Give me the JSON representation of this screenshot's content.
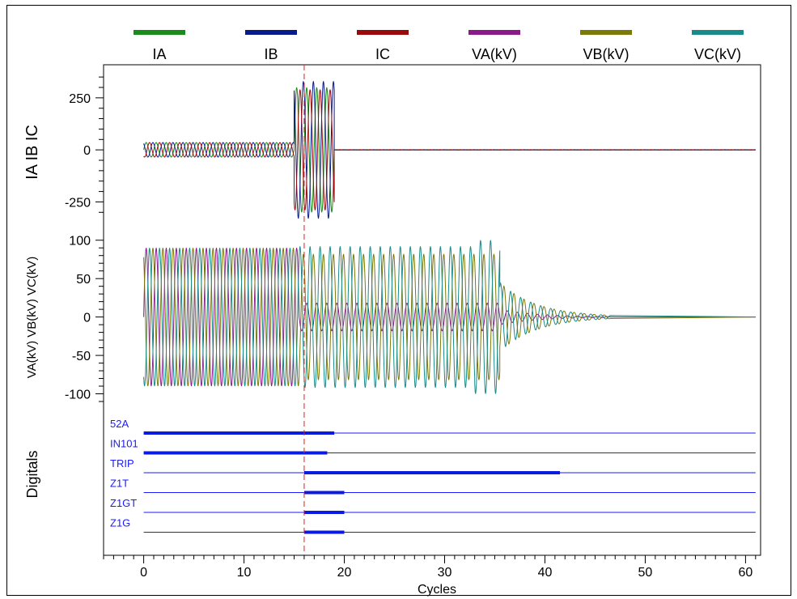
{
  "legend": [
    {
      "label": "IA",
      "color": "#1a8a1a"
    },
    {
      "label": "IB",
      "color": "#0a1a8a"
    },
    {
      "label": "IC",
      "color": "#9a0a0a"
    },
    {
      "label": "VA(kV)",
      "color": "#8a1a8a"
    },
    {
      "label": "VB(kV)",
      "color": "#7a7a0a"
    },
    {
      "label": "VC(kV)",
      "color": "#1a8a8a"
    }
  ],
  "chart_data": {
    "type": "line",
    "xlabel": "Cycles",
    "xlim": [
      -4,
      61.5
    ],
    "xticks": [
      0,
      10,
      20,
      30,
      40,
      50,
      60
    ],
    "event_marker_x": 16,
    "panels": [
      {
        "ylabel": "IA IB IC",
        "ylim": [
          -330,
          370
        ],
        "yticks": [
          -250,
          0,
          250
        ],
        "series": [
          {
            "name": "IA",
            "segments": [
              {
                "x0": 0,
                "x1": 15,
                "amplitude": 35
              },
              {
                "x0": 15,
                "x1": 19,
                "amplitude": 300
              },
              {
                "x0": 19,
                "x1": 61,
                "amplitude": 1
              }
            ]
          },
          {
            "name": "IB",
            "segments": [
              {
                "x0": 0,
                "x1": 15,
                "amplitude": 35
              },
              {
                "x0": 15,
                "x1": 19,
                "amplitude": 330
              },
              {
                "x0": 19,
                "x1": 61,
                "amplitude": 1
              }
            ]
          },
          {
            "name": "IC",
            "segments": [
              {
                "x0": 0,
                "x1": 15,
                "amplitude": 35
              },
              {
                "x0": 15,
                "x1": 19,
                "amplitude": 290
              },
              {
                "x0": 19,
                "x1": 61,
                "amplitude": 1
              }
            ]
          }
        ]
      },
      {
        "ylabel": "VA(kV) VB(kV) VC(kV)",
        "ylim": [
          -110,
          105
        ],
        "yticks": [
          -100,
          -50,
          0,
          50,
          100
        ],
        "series": [
          {
            "name": "VA(kV)",
            "segments": [
              {
                "x0": 0,
                "x1": 15.5,
                "amplitude": 90
              },
              {
                "x0": 15.5,
                "x1": 35.5,
                "amplitude": 18
              },
              {
                "x0": 35.5,
                "x1": 46.5,
                "amplitude": 10,
                "decay": true
              }
            ]
          },
          {
            "name": "VB(kV)",
            "segments": [
              {
                "x0": 0,
                "x1": 15.5,
                "amplitude": 90
              },
              {
                "x0": 15.5,
                "x1": 35.5,
                "amplitude": 82
              },
              {
                "x0": 35.5,
                "x1": 46.5,
                "amplitude": 45,
                "decay": true
              }
            ]
          },
          {
            "name": "VC(kV)",
            "segments": [
              {
                "x0": 0,
                "x1": 15.5,
                "amplitude": 90
              },
              {
                "x0": 15.5,
                "x1": 33,
                "amplitude": 92
              },
              {
                "x0": 33,
                "x1": 35.5,
                "amplitude": 100
              },
              {
                "x0": 35.5,
                "x1": 46.5,
                "amplitude": 45,
                "decay": true
              }
            ]
          }
        ]
      }
    ],
    "digitals": {
      "ylabel": "Digitals",
      "x_extent": [
        0,
        61
      ],
      "channels": [
        {
          "name": "52A",
          "asserted": [
            [
              0,
              19
            ]
          ]
        },
        {
          "name": "IN101",
          "asserted": [
            [
              0,
              18.3
            ]
          ]
        },
        {
          "name": "TRIP",
          "asserted": [
            [
              16,
              41.5
            ]
          ]
        },
        {
          "name": "Z1T",
          "asserted": [
            [
              16,
              20
            ]
          ]
        },
        {
          "name": "Z1GT",
          "asserted": [
            [
              16,
              20
            ]
          ]
        },
        {
          "name": "Z1G",
          "asserted": [
            [
              16,
              20
            ]
          ]
        }
      ]
    }
  }
}
